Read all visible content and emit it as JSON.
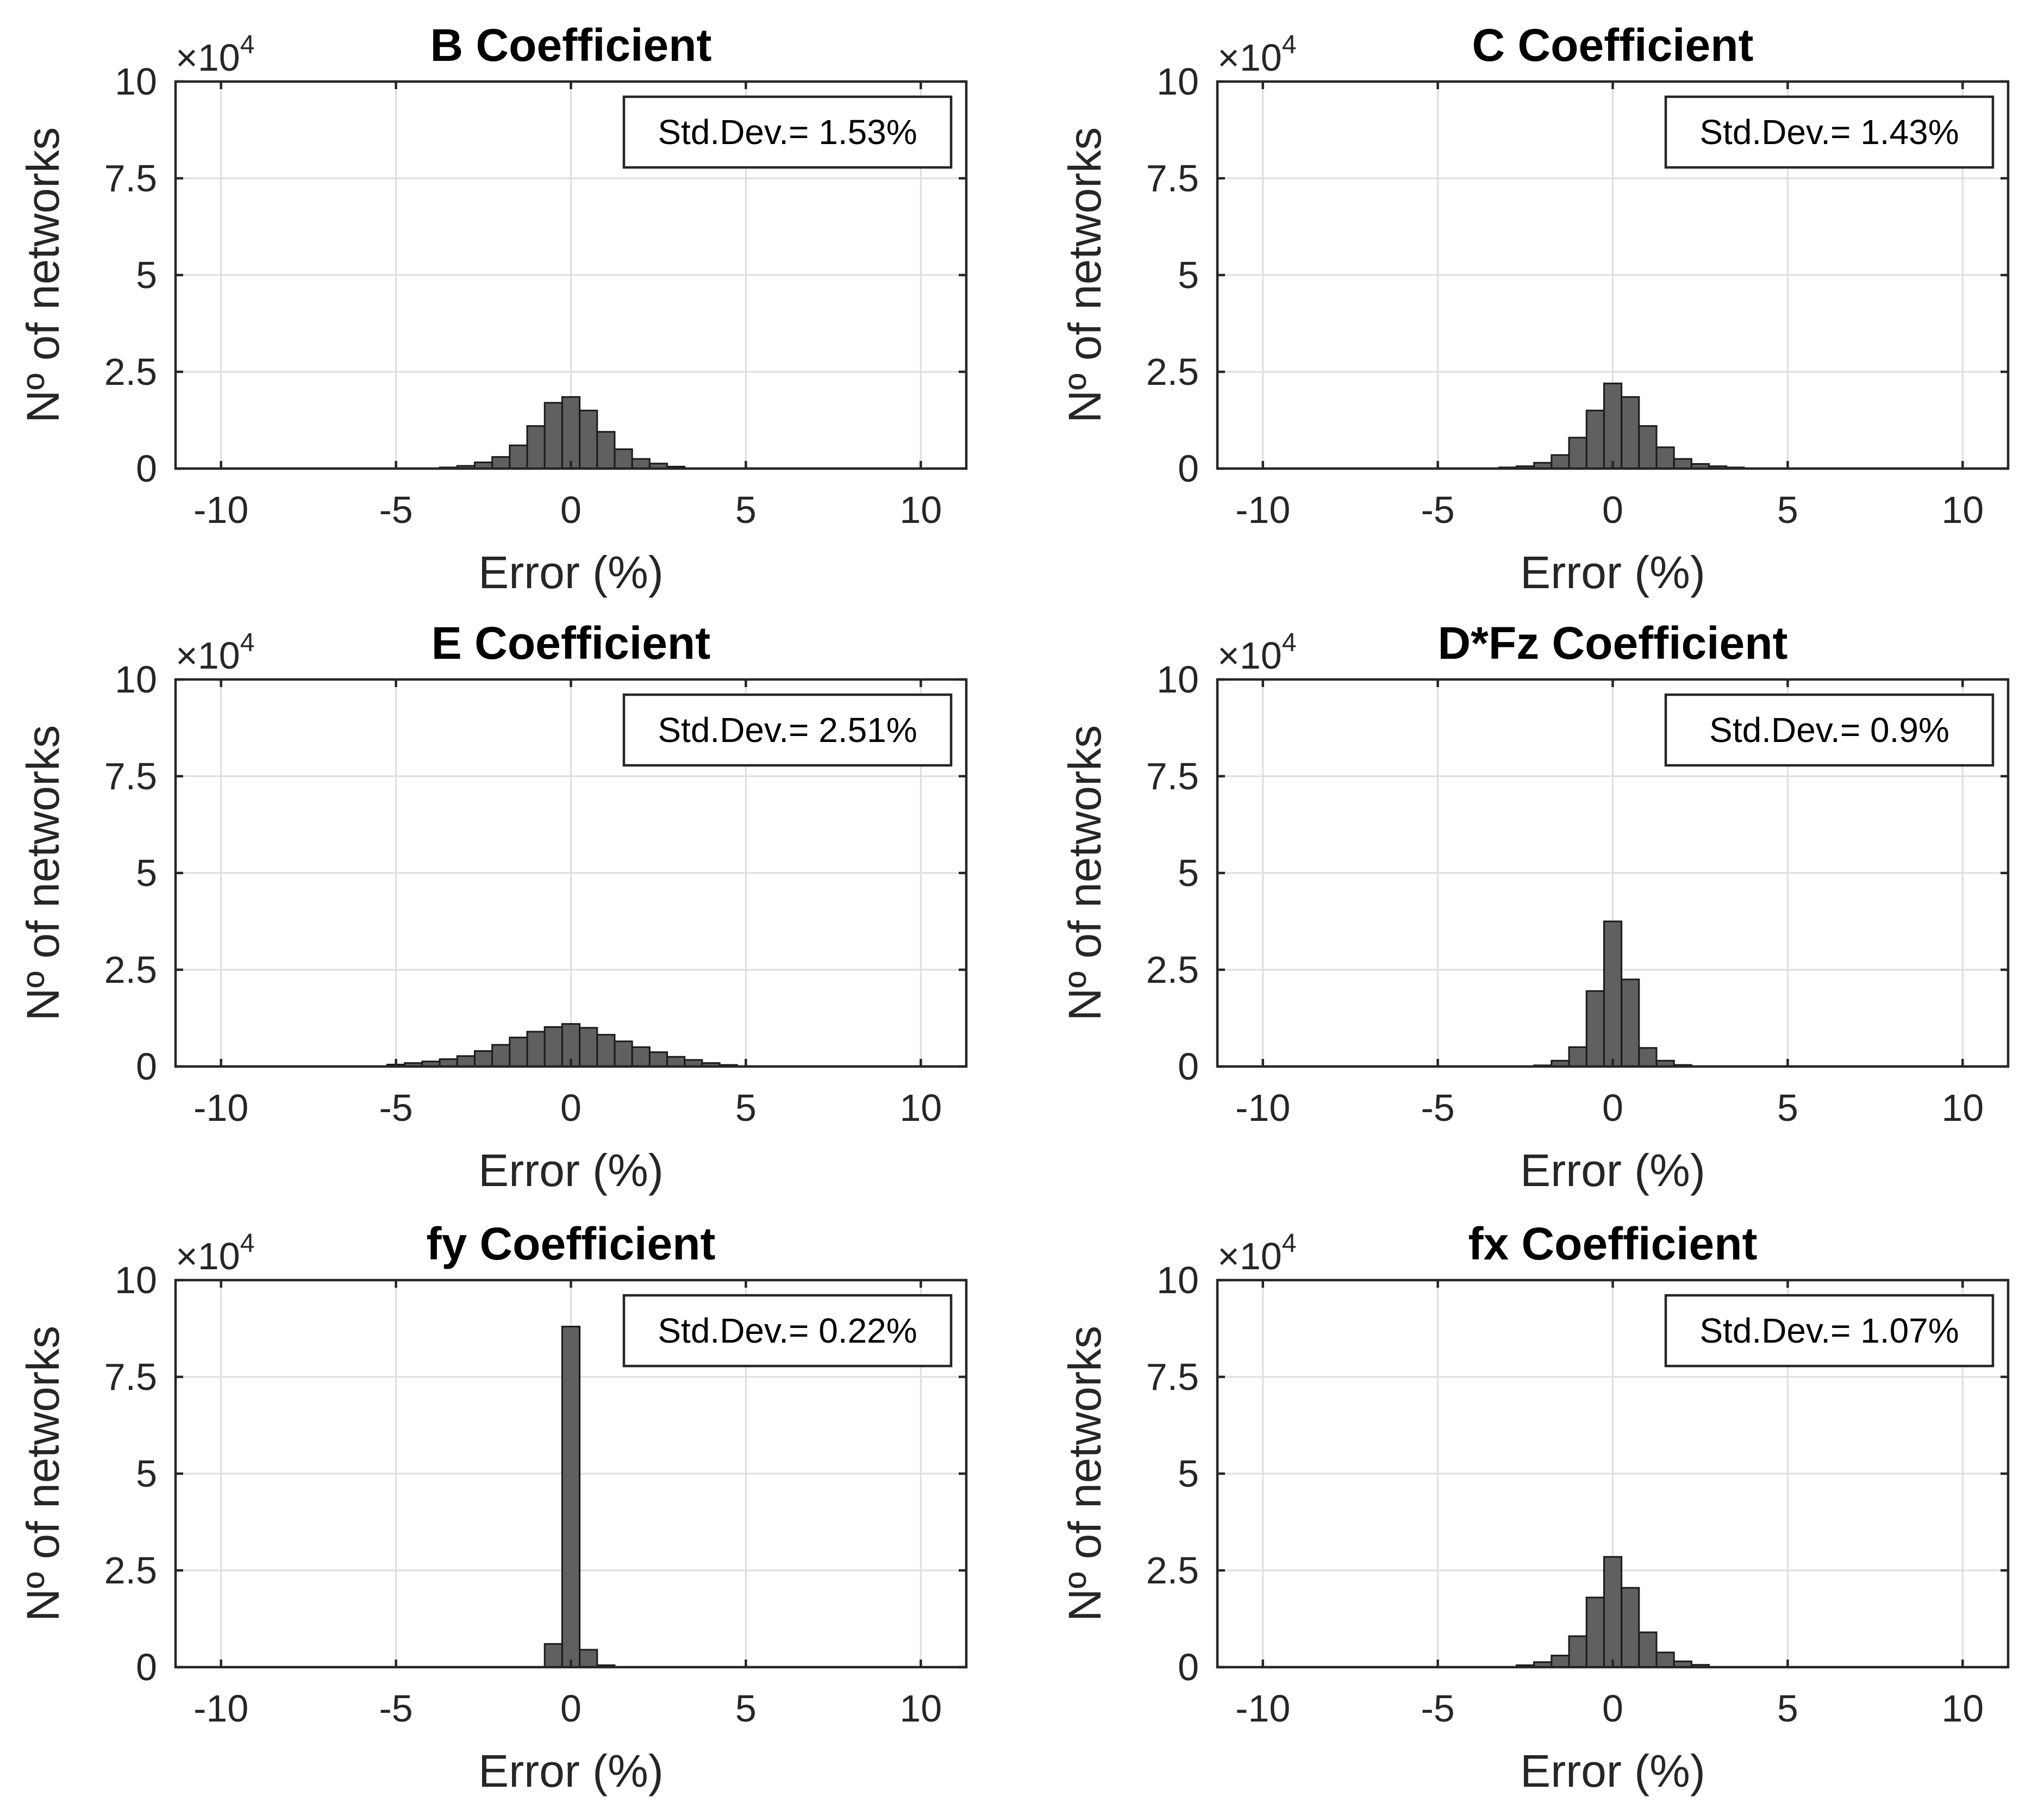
{
  "colors": {
    "bar_fill": "#606060",
    "bar_edge": "#1a1a1a",
    "grid": "#dedede",
    "axis": "#262626"
  },
  "chart_data": [
    {
      "type": "bar",
      "title": "B Coefficient",
      "xlabel": "Error (%)",
      "ylabel": "Nº of networks",
      "xlim": [
        -11.3,
        11.3
      ],
      "ylim": [
        0,
        100000
      ],
      "xticks": [
        -10,
        -5,
        0,
        5,
        10
      ],
      "xtick_labels": [
        "-10",
        "-5",
        "0",
        "5",
        "10"
      ],
      "yticks": [
        0,
        25000,
        50000,
        75000,
        100000
      ],
      "ytick_labels": [
        "0",
        "2.5",
        "5",
        "7.5",
        "10"
      ],
      "y_multiplier_base": "×10",
      "y_multiplier_exp": "4",
      "grid": true,
      "legend": "Std.Dev.= 1.53%",
      "bin_width": 0.5,
      "bin_centers": [
        -3.5,
        -3.0,
        -2.5,
        -2.0,
        -1.5,
        -1.0,
        -0.5,
        0.0,
        0.5,
        1.0,
        1.5,
        2.0,
        2.5,
        3.0
      ],
      "values": [
        300,
        700,
        1600,
        3000,
        6000,
        11000,
        17000,
        18500,
        15000,
        9500,
        5000,
        2500,
        1300,
        500
      ]
    },
    {
      "type": "bar",
      "title": "C Coefficient",
      "xlabel": "Error (%)",
      "ylabel": "Nº of networks",
      "xlim": [
        -11.3,
        11.3
      ],
      "ylim": [
        0,
        100000
      ],
      "xticks": [
        -10,
        -5,
        0,
        5,
        10
      ],
      "xtick_labels": [
        "-10",
        "-5",
        "0",
        "5",
        "10"
      ],
      "yticks": [
        0,
        25000,
        50000,
        75000,
        100000
      ],
      "ytick_labels": [
        "0",
        "2.5",
        "5",
        "7.5",
        "10"
      ],
      "y_multiplier_base": "×10",
      "y_multiplier_exp": "4",
      "grid": true,
      "legend": "Std.Dev.= 1.43%",
      "bin_width": 0.5,
      "bin_centers": [
        -3.0,
        -2.5,
        -2.0,
        -1.5,
        -1.0,
        -0.5,
        0.0,
        0.5,
        1.0,
        1.5,
        2.0,
        2.5,
        3.0,
        3.5
      ],
      "values": [
        300,
        600,
        1500,
        3500,
        8000,
        15000,
        22000,
        18500,
        11000,
        5500,
        2500,
        1200,
        600,
        300
      ]
    },
    {
      "type": "bar",
      "title": "E Coefficient",
      "xlabel": "Error (%)",
      "ylabel": "Nº of networks",
      "xlim": [
        -11.3,
        11.3
      ],
      "ylim": [
        0,
        100000
      ],
      "xticks": [
        -10,
        -5,
        0,
        5,
        10
      ],
      "xtick_labels": [
        "-10",
        "-5",
        "0",
        "5",
        "10"
      ],
      "yticks": [
        0,
        25000,
        50000,
        75000,
        100000
      ],
      "ytick_labels": [
        "0",
        "2.5",
        "5",
        "7.5",
        "10"
      ],
      "y_multiplier_base": "×10",
      "y_multiplier_exp": "4",
      "grid": true,
      "legend": "Std.Dev.= 2.51%",
      "bin_width": 0.5,
      "bin_centers": [
        -5.0,
        -4.5,
        -4.0,
        -3.5,
        -3.0,
        -2.5,
        -2.0,
        -1.5,
        -1.0,
        -0.5,
        0.0,
        0.5,
        1.0,
        1.5,
        2.0,
        2.5,
        3.0,
        3.5,
        4.0,
        4.5
      ],
      "values": [
        500,
        900,
        1300,
        1900,
        2700,
        4000,
        5600,
        7500,
        9000,
        10200,
        11000,
        10000,
        8200,
        6500,
        5000,
        3700,
        2500,
        1700,
        900,
        400
      ]
    },
    {
      "type": "bar",
      "title": "D*Fz Coefficient",
      "xlabel": "Error (%)",
      "ylabel": "Nº of networks",
      "xlim": [
        -11.3,
        11.3
      ],
      "ylim": [
        0,
        100000
      ],
      "xticks": [
        -10,
        -5,
        0,
        5,
        10
      ],
      "xtick_labels": [
        "-10",
        "-5",
        "0",
        "5",
        "10"
      ],
      "yticks": [
        0,
        25000,
        50000,
        75000,
        100000
      ],
      "ytick_labels": [
        "0",
        "2.5",
        "5",
        "7.5",
        "10"
      ],
      "y_multiplier_base": "×10",
      "y_multiplier_exp": "4",
      "grid": true,
      "legend": "Std.Dev.= 0.9%",
      "bin_width": 0.5,
      "bin_centers": [
        -2.0,
        -1.5,
        -1.0,
        -0.5,
        0.0,
        0.5,
        1.0,
        1.5,
        2.0
      ],
      "values": [
        300,
        1500,
        5000,
        19500,
        37500,
        22500,
        4800,
        1500,
        400
      ]
    },
    {
      "type": "bar",
      "title": "fy Coefficient",
      "xlabel": "Error (%)",
      "ylabel": "Nº of networks",
      "xlim": [
        -11.3,
        11.3
      ],
      "ylim": [
        0,
        100000
      ],
      "xticks": [
        -10,
        -5,
        0,
        5,
        10
      ],
      "xtick_labels": [
        "-10",
        "-5",
        "0",
        "5",
        "10"
      ],
      "yticks": [
        0,
        25000,
        50000,
        75000,
        100000
      ],
      "ytick_labels": [
        "0",
        "2.5",
        "5",
        "7.5",
        "10"
      ],
      "y_multiplier_base": "×10",
      "y_multiplier_exp": "4",
      "grid": true,
      "legend": "Std.Dev.= 0.22%",
      "bin_width": 0.5,
      "bin_centers": [
        -0.5,
        0.0,
        0.5,
        1.0
      ],
      "values": [
        6000,
        88000,
        4500,
        500
      ]
    },
    {
      "type": "bar",
      "title": "fx Coefficient",
      "xlabel": "Error (%)",
      "ylabel": "Nº of networks",
      "xlim": [
        -11.3,
        11.3
      ],
      "ylim": [
        0,
        100000
      ],
      "xticks": [
        -10,
        -5,
        0,
        5,
        10
      ],
      "xtick_labels": [
        "-10",
        "-5",
        "0",
        "5",
        "10"
      ],
      "yticks": [
        0,
        25000,
        50000,
        75000,
        100000
      ],
      "ytick_labels": [
        "0",
        "2.5",
        "5",
        "7.5",
        "10"
      ],
      "y_multiplier_base": "×10",
      "y_multiplier_exp": "4",
      "grid": true,
      "legend": "Std.Dev.= 1.07%",
      "bin_width": 0.5,
      "bin_centers": [
        -2.5,
        -2.0,
        -1.5,
        -1.0,
        -0.5,
        0.0,
        0.5,
        1.0,
        1.5,
        2.0,
        2.5
      ],
      "values": [
        500,
        1300,
        3000,
        8000,
        18000,
        28500,
        20500,
        9000,
        3800,
        1500,
        600
      ]
    }
  ]
}
